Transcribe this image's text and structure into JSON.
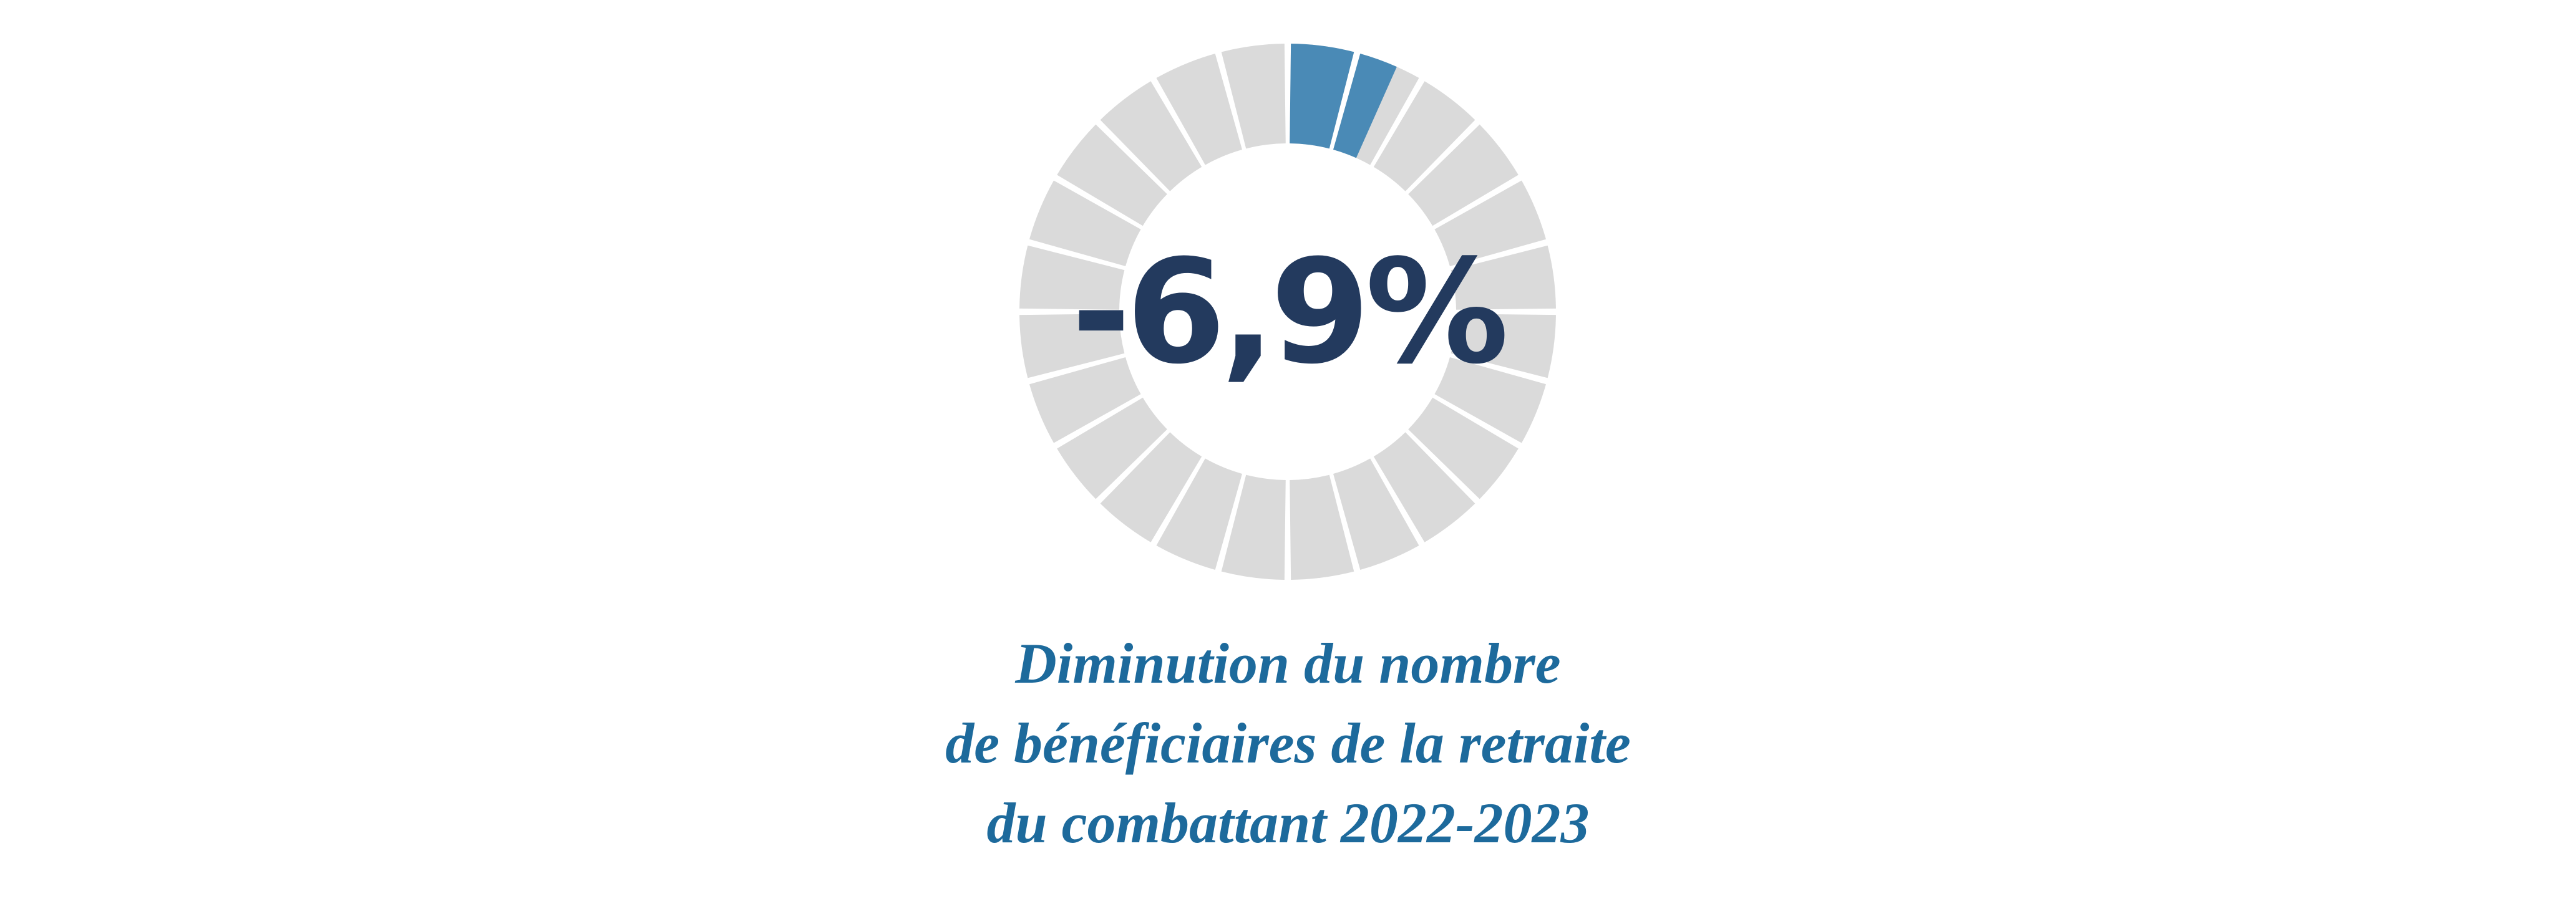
{
  "chart_data": {
    "type": "gauge",
    "value_label": "-6,9%",
    "value_percent": 6.9,
    "segments": 24,
    "filled_segments": 1.6,
    "title_lines": [
      "Diminution du nombre",
      "de bénéficiaires de la retraite",
      "du combattant 2022-2023"
    ],
    "colors": {
      "filled": "#4a8ab6",
      "empty": "#dadada",
      "value_text": "#233a5e",
      "title": "#1d6a9c"
    }
  }
}
